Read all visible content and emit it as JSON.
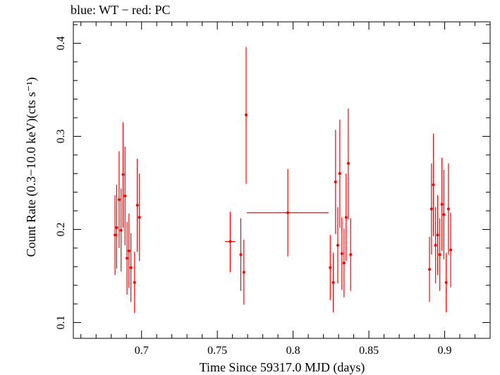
{
  "chart_data": {
    "type": "scatter",
    "title": "blue: WT − red: PC",
    "xlabel": "Time Since 59317.0 MJD (days)",
    "ylabel": "Count Rate (0.3−10.0 keV)(cts s⁻¹)",
    "xlim": [
      0.655,
      0.93
    ],
    "ylim": [
      0.083,
      0.423
    ],
    "x_ticks": [
      0.7,
      0.75,
      0.8,
      0.85,
      0.9
    ],
    "x_tick_labels": [
      "0.7",
      "0.75",
      "0.8",
      "0.85",
      "0.9"
    ],
    "y_ticks": [
      0.1,
      0.2,
      0.3,
      0.4
    ],
    "y_tick_labels": [
      "0.1",
      "0.2",
      "0.3",
      "0.4"
    ],
    "grid": false,
    "series_color": "#ff0000",
    "points": [
      {
        "x": 0.6825,
        "y": 0.194,
        "xerr": 0,
        "ylo": 0.151,
        "yhi": 0.237
      },
      {
        "x": 0.6836,
        "y": 0.202,
        "xerr": 0,
        "ylo": 0.158,
        "yhi": 0.248
      },
      {
        "x": 0.6852,
        "y": 0.232,
        "xerr": 0,
        "ylo": 0.18,
        "yhi": 0.284
      },
      {
        "x": 0.6865,
        "y": 0.199,
        "xerr": 0,
        "ylo": 0.155,
        "yhi": 0.244
      },
      {
        "x": 0.6878,
        "y": 0.259,
        "xerr": 0,
        "ylo": 0.202,
        "yhi": 0.315
      },
      {
        "x": 0.6891,
        "y": 0.236,
        "xerr": 0,
        "ylo": 0.183,
        "yhi": 0.289
      },
      {
        "x": 0.6904,
        "y": 0.169,
        "xerr": 0,
        "ylo": 0.13,
        "yhi": 0.208
      },
      {
        "x": 0.6917,
        "y": 0.177,
        "xerr": 0,
        "ylo": 0.137,
        "yhi": 0.217
      },
      {
        "x": 0.693,
        "y": 0.159,
        "xerr": 0,
        "ylo": 0.122,
        "yhi": 0.196
      },
      {
        "x": 0.6954,
        "y": 0.143,
        "xerr": 0,
        "ylo": 0.11,
        "yhi": 0.176
      },
      {
        "x": 0.6972,
        "y": 0.226,
        "xerr": 0,
        "ylo": 0.176,
        "yhi": 0.276
      },
      {
        "x": 0.6986,
        "y": 0.213,
        "xerr": 0,
        "ylo": 0.166,
        "yhi": 0.26
      },
      {
        "x": 0.7585,
        "y": 0.187,
        "xerr": 0.0035,
        "ylo": 0.154,
        "yhi": 0.219
      },
      {
        "x": 0.7655,
        "y": 0.173,
        "xerr": 0,
        "ylo": 0.134,
        "yhi": 0.212
      },
      {
        "x": 0.7675,
        "y": 0.154,
        "xerr": 0,
        "ylo": 0.119,
        "yhi": 0.189
      },
      {
        "x": 0.769,
        "y": 0.323,
        "xerr": 0,
        "ylo": 0.249,
        "yhi": 0.396
      },
      {
        "x": 0.7965,
        "y": 0.218,
        "xerr": 0.027,
        "ylo": 0.171,
        "yhi": 0.265
      },
      {
        "x": 0.8245,
        "y": 0.159,
        "xerr": 0,
        "ylo": 0.124,
        "yhi": 0.194
      },
      {
        "x": 0.8265,
        "y": 0.143,
        "xerr": 0,
        "ylo": 0.111,
        "yhi": 0.175
      },
      {
        "x": 0.828,
        "y": 0.251,
        "xerr": 0,
        "ylo": 0.195,
        "yhi": 0.307
      },
      {
        "x": 0.8295,
        "y": 0.183,
        "xerr": 0,
        "ylo": 0.142,
        "yhi": 0.224
      },
      {
        "x": 0.8308,
        "y": 0.26,
        "xerr": 0,
        "ylo": 0.202,
        "yhi": 0.318
      },
      {
        "x": 0.8322,
        "y": 0.174,
        "xerr": 0,
        "ylo": 0.135,
        "yhi": 0.213
      },
      {
        "x": 0.8336,
        "y": 0.164,
        "xerr": 0,
        "ylo": 0.127,
        "yhi": 0.201
      },
      {
        "x": 0.835,
        "y": 0.213,
        "xerr": 0,
        "ylo": 0.166,
        "yhi": 0.26
      },
      {
        "x": 0.8364,
        "y": 0.271,
        "xerr": 0,
        "ylo": 0.211,
        "yhi": 0.33
      },
      {
        "x": 0.838,
        "y": 0.173,
        "xerr": 0,
        "ylo": 0.134,
        "yhi": 0.212
      },
      {
        "x": 0.89,
        "y": 0.157,
        "xerr": 0,
        "ylo": 0.122,
        "yhi": 0.192
      },
      {
        "x": 0.8913,
        "y": 0.222,
        "xerr": 0,
        "ylo": 0.173,
        "yhi": 0.271
      },
      {
        "x": 0.8926,
        "y": 0.248,
        "xerr": 0,
        "ylo": 0.193,
        "yhi": 0.303
      },
      {
        "x": 0.894,
        "y": 0.183,
        "xerr": 0,
        "ylo": 0.142,
        "yhi": 0.224
      },
      {
        "x": 0.8954,
        "y": 0.194,
        "xerr": 0,
        "ylo": 0.151,
        "yhi": 0.237
      },
      {
        "x": 0.8968,
        "y": 0.173,
        "xerr": 0,
        "ylo": 0.134,
        "yhi": 0.212
      },
      {
        "x": 0.8982,
        "y": 0.227,
        "xerr": 0,
        "ylo": 0.177,
        "yhi": 0.277
      },
      {
        "x": 0.8995,
        "y": 0.216,
        "xerr": 0,
        "ylo": 0.168,
        "yhi": 0.264
      },
      {
        "x": 0.901,
        "y": 0.143,
        "xerr": 0,
        "ylo": 0.111,
        "yhi": 0.175
      },
      {
        "x": 0.9025,
        "y": 0.222,
        "xerr": 0,
        "ylo": 0.173,
        "yhi": 0.271
      },
      {
        "x": 0.904,
        "y": 0.178,
        "xerr": 0,
        "ylo": 0.138,
        "yhi": 0.218
      }
    ]
  }
}
